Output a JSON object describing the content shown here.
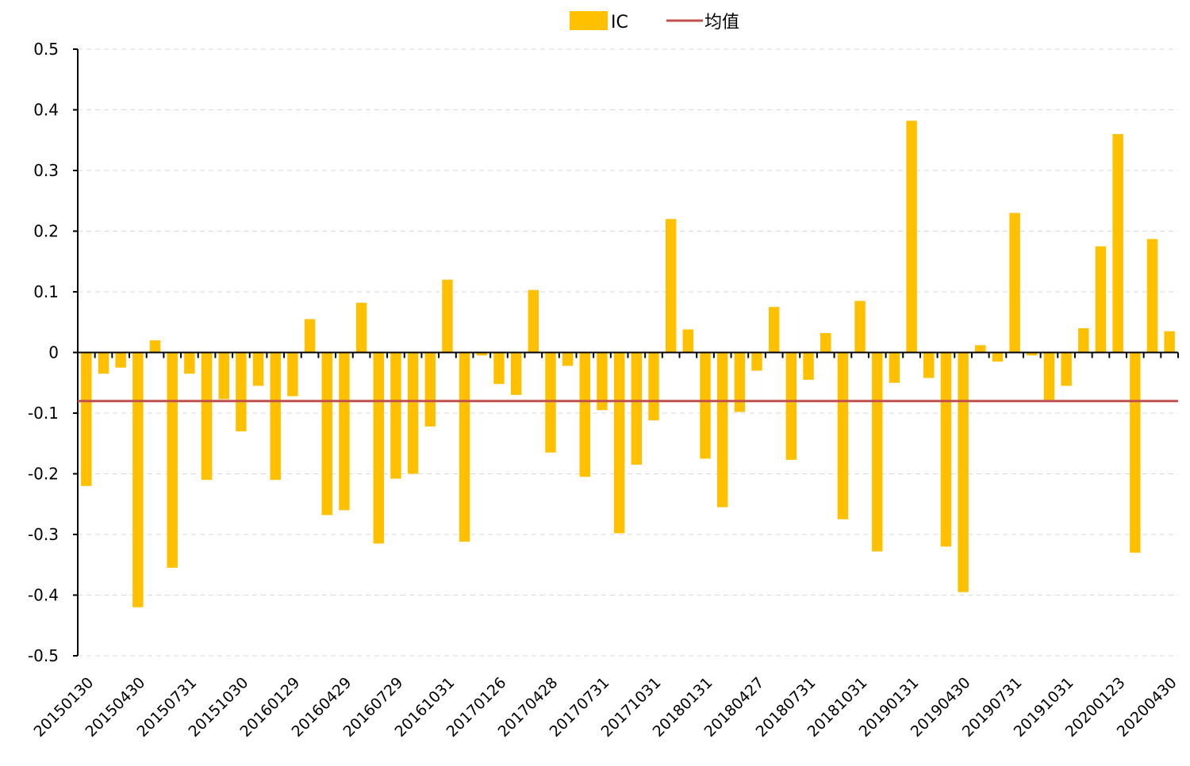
{
  "chart_data": {
    "type": "bar",
    "series": [
      {
        "name": "IC",
        "color": "#FFC000",
        "values": [
          -0.22,
          -0.035,
          -0.025,
          -0.42,
          0.02,
          -0.355,
          -0.035,
          -0.21,
          -0.077,
          -0.13,
          -0.055,
          -0.21,
          -0.072,
          0.055,
          -0.268,
          -0.26,
          0.082,
          -0.315,
          -0.208,
          -0.2,
          -0.122,
          0.12,
          -0.312,
          -0.005,
          -0.052,
          -0.07,
          0.103,
          -0.165,
          -0.022,
          -0.205,
          -0.095,
          -0.298,
          -0.185,
          -0.112,
          0.22,
          0.038,
          -0.175,
          -0.255,
          -0.098,
          -0.03,
          0.075,
          -0.177,
          -0.045,
          0.032,
          -0.275,
          0.085,
          -0.328,
          -0.05,
          0.382,
          -0.042,
          -0.32,
          -0.395,
          0.012,
          -0.015,
          0.23,
          -0.005,
          -0.078,
          -0.055,
          0.04,
          0.175,
          0.36,
          -0.33,
          0.187,
          0.035
        ]
      }
    ],
    "mean": {
      "name": "均值",
      "value": -0.08,
      "color": "#C0504D"
    },
    "x_tick_labels": [
      "20150130",
      "20150430",
      "20150731",
      "20151030",
      "20160129",
      "20160429",
      "20160729",
      "20161031",
      "20170126",
      "20170428",
      "20170731",
      "20171031",
      "20180131",
      "20180427",
      "20180731",
      "20181031",
      "20190131",
      "20190430",
      "20190731",
      "20191031",
      "20200123",
      "20200430"
    ],
    "x_tick_every": 3,
    "y_ticks": [
      0.5,
      0.4,
      0.3,
      0.2,
      0.1,
      0,
      -0.1,
      -0.2,
      -0.3,
      -0.4,
      -0.5
    ],
    "y_tick_labels": [
      "0.5",
      "0.4",
      "0.3",
      "0.2",
      "0.1",
      "0",
      "-0.1",
      "-0.2",
      "-0.3",
      "-0.4",
      "-0.5"
    ],
    "ylim": [
      -0.5,
      0.5
    ],
    "grid": true,
    "legend_position": "top-center",
    "title": "",
    "xlabel": "",
    "ylabel": ""
  }
}
